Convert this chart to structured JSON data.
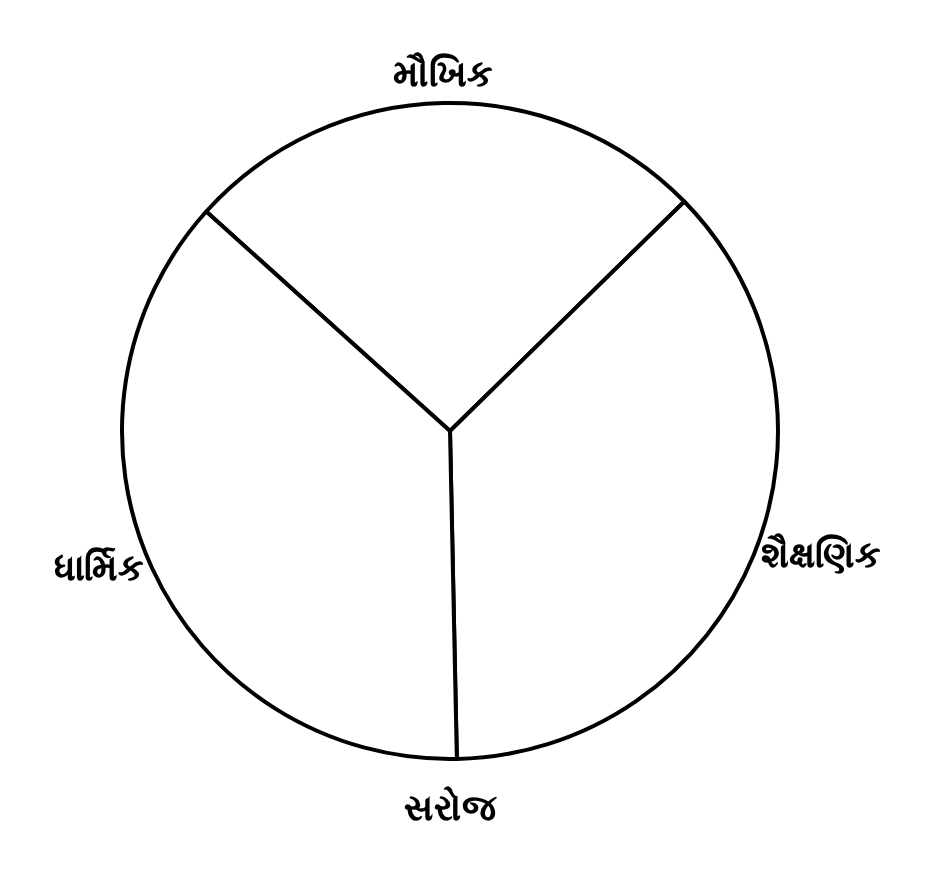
{
  "chart_data": {
    "type": "pie",
    "title": "સરોજ",
    "categories": [
      "મૌખિક",
      "શૈક્ષણિક",
      "ધાર્મિક"
    ],
    "values": [
      26,
      37,
      37
    ],
    "colors": [
      "#ffffff",
      "#ffffff",
      "#ffffff"
    ],
    "legend": false
  }
}
